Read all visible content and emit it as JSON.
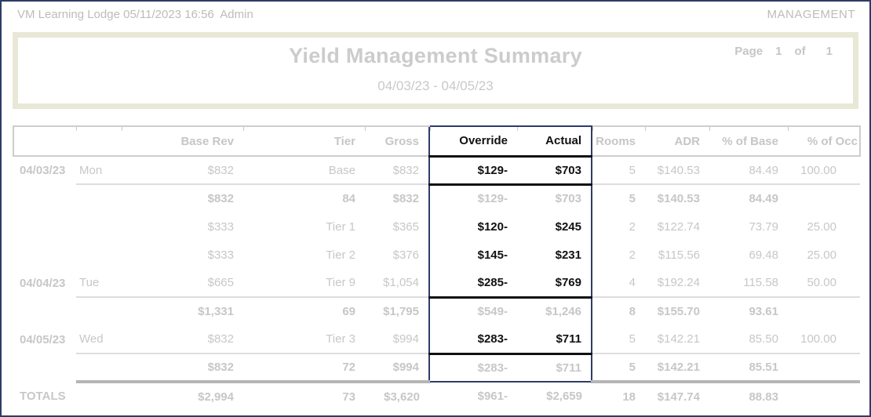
{
  "page": {
    "header_left": "VM Learning Lodge 05/11/2023 16:56  Admin",
    "header_right": "MANAGEMENT"
  },
  "report": {
    "title": "Yield Management Summary",
    "date_range": "04/03/23 - 04/05/23",
    "page_label": "Page",
    "page_number": "1",
    "of_label": "of",
    "page_count": "1"
  },
  "table": {
    "columns": [
      "",
      "",
      "Base Rev",
      "Tier",
      "Gross",
      "Override",
      "Actual",
      "Rooms",
      "ADR",
      "% of Base",
      "% of Occ"
    ],
    "rows": [
      {
        "type": "detail day-end",
        "cells": [
          "04/03/23",
          "Mon",
          "$832",
          "Base",
          "$832",
          "$129-",
          "$703",
          "5",
          "$140.53",
          "84.49",
          "100.00"
        ]
      },
      {
        "type": "summary",
        "cells": [
          "",
          "",
          "$832",
          "84",
          "$832",
          "$129-",
          "$703",
          "5",
          "$140.53",
          "84.49",
          ""
        ]
      },
      {
        "type": "detail",
        "cells": [
          "",
          "",
          "$333",
          "Tier 1",
          "$365",
          "$120-",
          "$245",
          "2",
          "$122.74",
          "73.79",
          "25.00"
        ]
      },
      {
        "type": "detail",
        "cells": [
          "",
          "",
          "$333",
          "Tier 2",
          "$376",
          "$145-",
          "$231",
          "2",
          "$115.56",
          "69.48",
          "25.00"
        ]
      },
      {
        "type": "detail day-end",
        "cells": [
          "04/04/23",
          "Tue",
          "$665",
          "Tier 9",
          "$1,054",
          "$285-",
          "$769",
          "4",
          "$192.24",
          "115.58",
          "50.00"
        ]
      },
      {
        "type": "summary",
        "cells": [
          "",
          "",
          "$1,331",
          "69",
          "$1,795",
          "$549-",
          "$1,246",
          "8",
          "$155.70",
          "93.61",
          ""
        ]
      },
      {
        "type": "detail day-end",
        "cells": [
          "04/05/23",
          "Wed",
          "$832",
          "Tier 3",
          "$994",
          "$283-",
          "$711",
          "5",
          "$142.21",
          "85.50",
          "100.00"
        ]
      },
      {
        "type": "summary pre-totals",
        "cells": [
          "",
          "",
          "$832",
          "72",
          "$994",
          "$283-",
          "$711",
          "5",
          "$142.21",
          "85.51",
          ""
        ]
      },
      {
        "type": "totals",
        "cells": [
          "TOTALS",
          "",
          "$2,994",
          "73",
          "$3,620",
          "$961-",
          "$2,659",
          "18",
          "$147.74",
          "88.83",
          ""
        ]
      }
    ],
    "highlight": {
      "columns": [
        "Override",
        "Actual"
      ],
      "border_color": "#2e3c68"
    }
  },
  "colors": {
    "page_border": "#2e3c68",
    "title_box_border": "#e8e8d6",
    "faded_text": "#c7c7c7",
    "active_text": "#111111",
    "separator_line": "#dedede",
    "totals_line": "#b6b6b6"
  }
}
